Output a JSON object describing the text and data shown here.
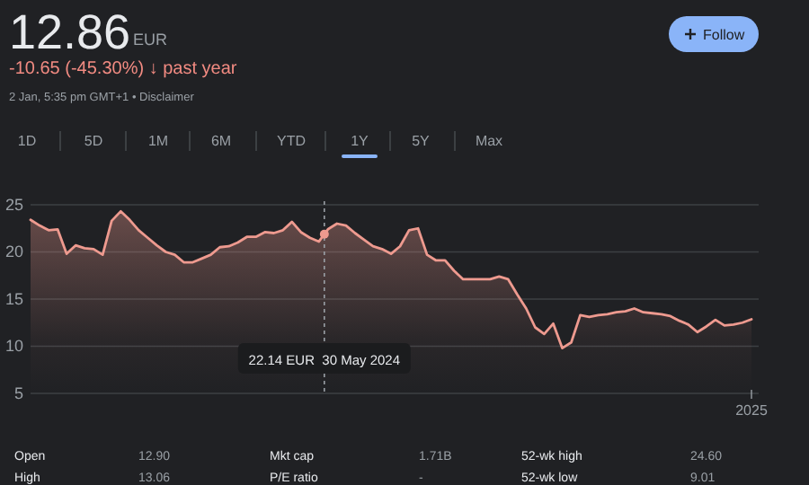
{
  "chart_data": {
    "type": "area",
    "title": "12.86",
    "subtitle": "-10.65 (-45.30%) ↓ past year",
    "annotations": [
      "EUR",
      "2 Jan, 5:35 pm GMT+1 • Disclaimer",
      "Follow",
      "1D",
      "5D",
      "1M",
      "6M",
      "YTD",
      "1Y",
      "5Y",
      "Max",
      "22.14 EUR  30 May 2024",
      "Open",
      "12.90",
      "Mkt cap",
      "1.71B",
      "52-wk high",
      "24.60",
      "High",
      "13.06",
      "P/E ratio",
      "-",
      "52-wk low",
      "9.01",
      "2025"
    ],
    "categories": [
      null,
      null,
      null,
      null,
      null,
      null,
      null,
      null,
      null,
      null,
      null,
      null,
      null,
      null,
      null,
      null,
      null,
      null,
      null,
      null,
      null,
      null,
      null,
      null,
      null,
      null,
      null,
      null,
      null,
      null,
      null,
      null,
      null,
      null,
      null,
      null,
      null,
      null,
      null,
      null,
      null,
      null,
      null,
      null,
      null,
      null,
      null,
      null,
      null,
      null,
      null,
      null,
      null,
      null,
      null,
      null,
      null,
      null,
      null,
      null,
      null,
      null,
      null,
      null,
      null,
      null,
      null,
      null,
      null,
      null,
      null,
      null,
      null,
      null,
      null,
      null,
      null,
      null,
      null,
      null,
      null
    ],
    "series": [
      {
        "color": "#ee9a8f",
        "values": [
          23.4,
          22.8,
          22.3,
          22.4,
          19.8,
          20.7,
          20.4,
          20.3,
          19.7,
          23.3,
          24.3,
          23.4,
          22.3,
          21.5,
          20.7,
          20.0,
          19.7,
          18.9,
          18.9,
          19.3,
          19.7,
          20.5,
          20.6,
          21.0,
          21.6,
          21.6,
          22.1,
          22.0,
          22.3,
          23.2,
          22.1,
          21.5,
          21.1,
          22.4,
          23.0,
          22.8,
          22.0,
          21.3,
          20.6,
          20.3,
          19.8,
          20.6,
          22.3,
          22.5,
          19.7,
          19.1,
          19.1,
          18.0,
          17.1,
          17.1,
          17.1,
          17.1,
          17.4,
          17.1,
          15.5,
          14.0,
          12.0,
          11.3,
          12.4,
          9.8,
          10.4,
          13.3,
          13.1,
          13.3,
          13.4,
          13.6,
          13.7,
          14.0,
          13.6,
          13.5,
          13.4,
          13.2,
          12.7,
          12.3,
          11.5,
          12.1,
          12.8,
          12.2,
          12.3,
          12.5,
          12.86
        ]
      }
    ],
    "tick_labels": "y",
    "ylim": [
      5,
      25
    ],
    "yticks": [
      5,
      10,
      15,
      20,
      25
    ],
    "grid": "y"
  }
}
